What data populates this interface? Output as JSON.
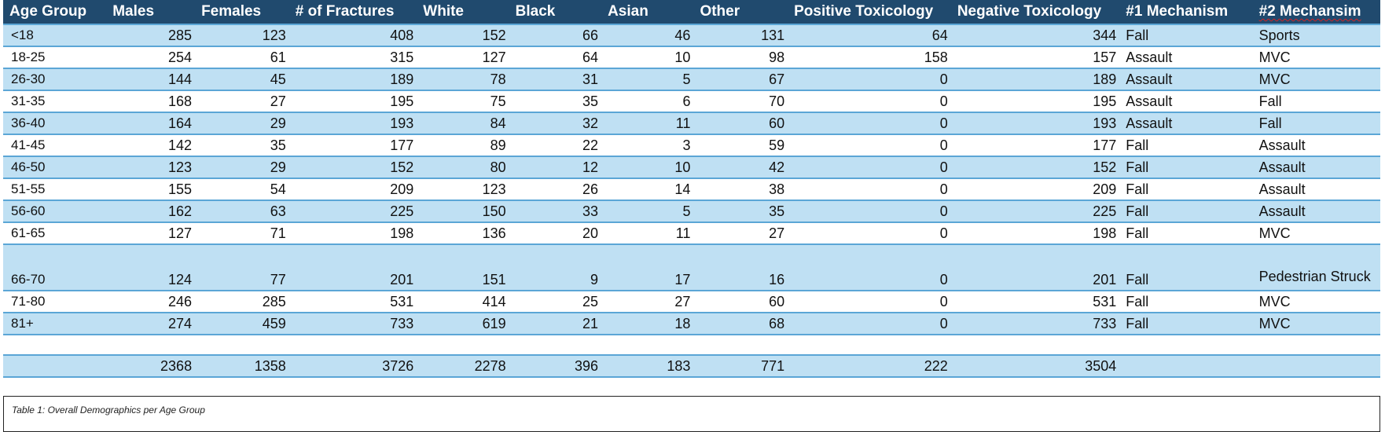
{
  "headers": {
    "age_group": "Age Group",
    "males": "Males",
    "females": "Females",
    "fractures": "# of Fractures",
    "white": "White",
    "black": "Black",
    "asian": "Asian",
    "other": "Other",
    "pos_tox": "Positive Toxicology",
    "neg_tox": "Negative Toxicology",
    "mech1": "#1 Mechanism",
    "mech2": "#2 Mechansim"
  },
  "rows": [
    {
      "age": "<18",
      "males": "285",
      "females": "123",
      "fractures": "408",
      "white": "152",
      "black": "66",
      "asian": "46",
      "other": "131",
      "pos": "64",
      "neg": "344",
      "mech1": "Fall",
      "mech2": "Sports"
    },
    {
      "age": "18-25",
      "males": "254",
      "females": "61",
      "fractures": "315",
      "white": "127",
      "black": "64",
      "asian": "10",
      "other": "98",
      "pos": "158",
      "neg": "157",
      "mech1": "Assault",
      "mech2": "MVC"
    },
    {
      "age": "26-30",
      "males": "144",
      "females": "45",
      "fractures": "189",
      "white": "78",
      "black": "31",
      "asian": "5",
      "other": "67",
      "pos": "0",
      "neg": "189",
      "mech1": "Assault",
      "mech2": "MVC"
    },
    {
      "age": "31-35",
      "males": "168",
      "females": "27",
      "fractures": "195",
      "white": "75",
      "black": "35",
      "asian": "6",
      "other": "70",
      "pos": "0",
      "neg": "195",
      "mech1": "Assault",
      "mech2": "Fall"
    },
    {
      "age": "36-40",
      "males": "164",
      "females": "29",
      "fractures": "193",
      "white": "84",
      "black": "32",
      "asian": "11",
      "other": "60",
      "pos": "0",
      "neg": "193",
      "mech1": "Assault",
      "mech2": "Fall"
    },
    {
      "age": "41-45",
      "males": "142",
      "females": "35",
      "fractures": "177",
      "white": "89",
      "black": "22",
      "asian": "3",
      "other": "59",
      "pos": "0",
      "neg": "177",
      "mech1": "Fall",
      "mech2": "Assault"
    },
    {
      "age": "46-50",
      "males": "123",
      "females": "29",
      "fractures": "152",
      "white": "80",
      "black": "12",
      "asian": "10",
      "other": "42",
      "pos": "0",
      "neg": "152",
      "mech1": "Fall",
      "mech2": "Assault"
    },
    {
      "age": "51-55",
      "males": "155",
      "females": "54",
      "fractures": "209",
      "white": "123",
      "black": "26",
      "asian": "14",
      "other": "38",
      "pos": "0",
      "neg": "209",
      "mech1": "Fall",
      "mech2": "Assault"
    },
    {
      "age": "56-60",
      "males": "162",
      "females": "63",
      "fractures": "225",
      "white": "150",
      "black": "33",
      "asian": "5",
      "other": "35",
      "pos": "0",
      "neg": "225",
      "mech1": "Fall",
      "mech2": "Assault"
    },
    {
      "age": "61-65",
      "males": "127",
      "females": "71",
      "fractures": "198",
      "white": "136",
      "black": "20",
      "asian": "11",
      "other": "27",
      "pos": "0",
      "neg": "198",
      "mech1": "Fall",
      "mech2": "MVC"
    },
    {
      "age": "66-70",
      "males": "124",
      "females": "77",
      "fractures": "201",
      "white": "151",
      "black": "9",
      "asian": "17",
      "other": "16",
      "pos": "0",
      "neg": "201",
      "mech1": "Fall",
      "mech2": "Pedestrian Struck"
    },
    {
      "age": "71-80",
      "males": "246",
      "females": "285",
      "fractures": "531",
      "white": "414",
      "black": "25",
      "asian": "27",
      "other": "60",
      "pos": "0",
      "neg": "531",
      "mech1": "Fall",
      "mech2": "MVC"
    },
    {
      "age": "81+",
      "males": "274",
      "females": "459",
      "fractures": "733",
      "white": "619",
      "black": "21",
      "asian": "18",
      "other": "68",
      "pos": "0",
      "neg": "733",
      "mech1": "Fall",
      "mech2": "MVC"
    }
  ],
  "totals": {
    "males": "2368",
    "females": "1358",
    "fractures": "3726",
    "white": "2278",
    "black": "396",
    "asian": "183",
    "other": "771",
    "pos": "222",
    "neg": "3504"
  },
  "caption": "Table 1: Overall Demographics per Age Group",
  "colors": {
    "header_bg": "#204a6e",
    "band_bg": "#bfe0f3",
    "grid_line": "#5ba6d6",
    "spell_squiggle": "#d42424"
  }
}
